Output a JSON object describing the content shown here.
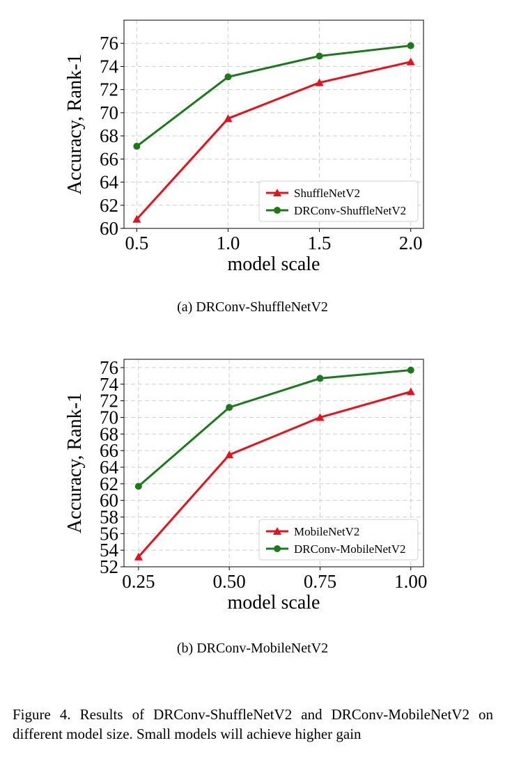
{
  "chart_data": [
    {
      "type": "line",
      "subcaption": "(a)  DRConv-ShuffleNetV2",
      "xlabel": "model scale",
      "ylabel": "Accuracy, Rank-1",
      "x": [
        0.5,
        1.0,
        1.5,
        2.0
      ],
      "x_tick_labels": [
        "0.5",
        "1.0",
        "1.5",
        "2.0"
      ],
      "xlim": [
        0.43,
        2.07
      ],
      "ylim": [
        60,
        78
      ],
      "y_ticks": [
        60,
        62,
        64,
        66,
        68,
        70,
        72,
        74,
        76
      ],
      "grid": true,
      "legend_position": "lower-right",
      "series": [
        {
          "name": "ShuffleNetV2",
          "color": "#e8101a",
          "marker": "triangle",
          "values": [
            60.8,
            69.5,
            72.6,
            74.4
          ]
        },
        {
          "name": "DRConv-ShuffleNetV2",
          "color": "#1a7a1a",
          "marker": "circle",
          "values": [
            67.1,
            73.1,
            74.9,
            75.8
          ]
        }
      ]
    },
    {
      "type": "line",
      "subcaption": "(b)  DRConv-MobileNetV2",
      "xlabel": "model scale",
      "ylabel": "Accuracy, Rank-1",
      "x": [
        0.25,
        0.5,
        0.75,
        1.0
      ],
      "x_tick_labels": [
        "0.25",
        "0.50",
        "0.75",
        "1.00"
      ],
      "xlim": [
        0.21,
        1.035
      ],
      "ylim": [
        52,
        77
      ],
      "y_ticks": [
        52,
        54,
        56,
        58,
        60,
        62,
        64,
        66,
        68,
        70,
        72,
        74,
        76
      ],
      "grid": true,
      "legend_position": "lower-right",
      "series": [
        {
          "name": "MobileNetV2",
          "color": "#e8101a",
          "marker": "triangle",
          "values": [
            53.2,
            65.5,
            70.0,
            73.1
          ]
        },
        {
          "name": "DRConv-MobileNetV2",
          "color": "#1a7a1a",
          "marker": "circle",
          "values": [
            61.7,
            71.2,
            74.7,
            75.7
          ]
        }
      ]
    }
  ],
  "caption": "Figure 4. Results of DRConv-ShuffleNetV2 and DRConv-MobileNetV2 on different model size. Small models will achieve higher gain"
}
